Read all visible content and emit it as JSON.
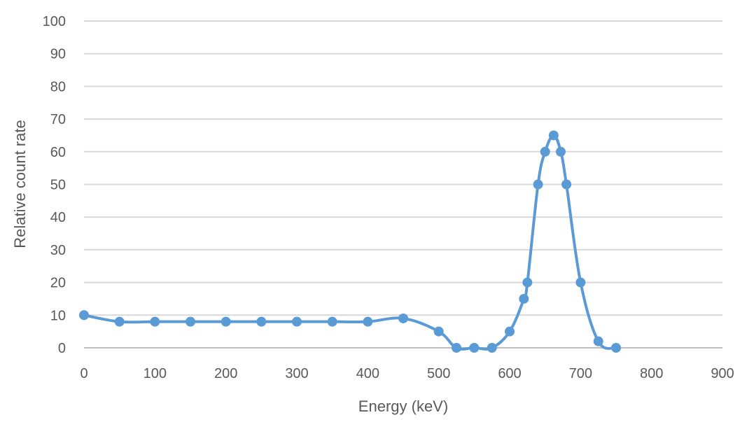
{
  "chart_data": {
    "type": "line",
    "title": "",
    "xlabel": "Energy (keV)",
    "ylabel": "Relative count rate",
    "xlim": [
      0,
      900
    ],
    "ylim": [
      0,
      100
    ],
    "xticks": [
      "0",
      "100",
      "200",
      "300",
      "400",
      "500",
      "600",
      "700",
      "800",
      "900"
    ],
    "yticks": [
      "0",
      "10",
      "20",
      "30",
      "40",
      "50",
      "60",
      "70",
      "80",
      "90",
      "100"
    ],
    "grid": "horizontal",
    "smoothed": true,
    "markers": true,
    "color": "#5B9BD5",
    "x": [
      0,
      50,
      100,
      150,
      200,
      250,
      300,
      350,
      400,
      450,
      500,
      525,
      550,
      575,
      600,
      620,
      625,
      640,
      650,
      662,
      672,
      680,
      700,
      725,
      750
    ],
    "y": [
      10,
      8,
      8,
      8,
      8,
      8,
      8,
      8,
      8,
      9,
      5,
      0,
      0,
      0,
      5,
      15,
      20,
      50,
      60,
      65,
      60,
      50,
      20,
      2,
      0
    ]
  }
}
